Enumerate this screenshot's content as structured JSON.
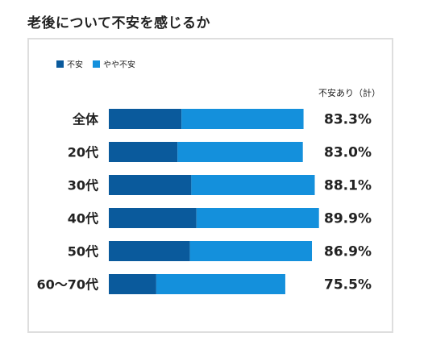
{
  "title": "老後について不安を感じるか",
  "colors": {
    "worried": "#0a5a9c",
    "somewhat": "#1490dc",
    "border": "#dedede"
  },
  "chart_data": {
    "type": "bar",
    "orientation": "horizontal",
    "stacked": true,
    "categories": [
      "全体",
      "20代",
      "30代",
      "40代",
      "50代",
      "60〜70代"
    ],
    "series": [
      {
        "name": "不安",
        "values": [
          31.1,
          29.4,
          35.3,
          37.5,
          34.7,
          20.3
        ]
      },
      {
        "name": "やや不安",
        "values": [
          52.2,
          53.6,
          52.8,
          52.4,
          52.2,
          55.2
        ]
      }
    ],
    "total_label": "不安あり（計）",
    "totals": [
      "83.3%",
      "83.0%",
      "88.1%",
      "89.9%",
      "86.9%",
      "75.5%"
    ],
    "legend": "top-left",
    "xlim": [
      0,
      100
    ],
    "grid": false
  }
}
